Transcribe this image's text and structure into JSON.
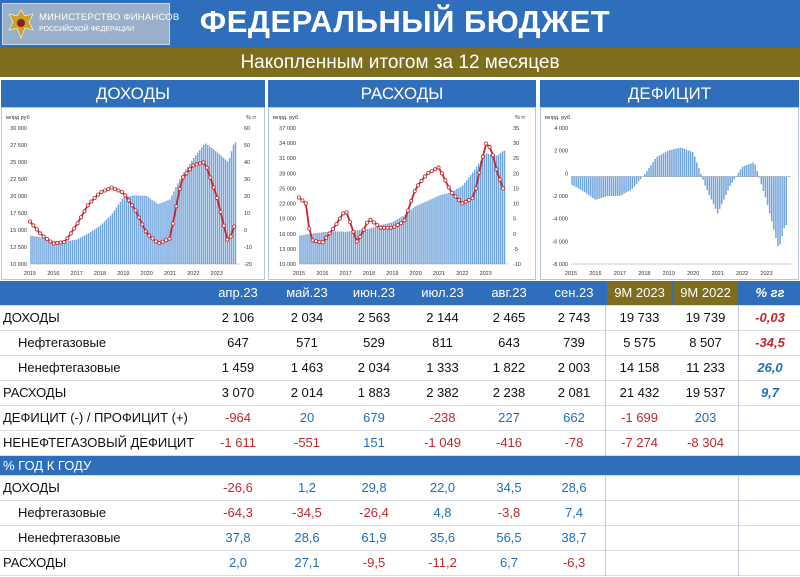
{
  "header": {
    "logo_line1": "МИНИСТЕРСТВО ФИНАНСОВ",
    "logo_line2": "РОССИЙСКОЙ ФЕДЕРАЦИИ",
    "title": "ФЕДЕРАЛЬНЫЙ БЮДЖЕТ",
    "subtitle": "Накопленным итогом за 12 месяцев"
  },
  "sections": {
    "income": "ДОХОДЫ",
    "expenses": "РАСХОДЫ",
    "deficit": "ДЕФИЦИТ"
  },
  "colors": {
    "blue": "#2f6eba",
    "gold": "#7f6d1e",
    "bar": "#6fa3dc",
    "line": "#c0282d",
    "negative": "#c0282d",
    "positive": "#1f6fb8"
  },
  "chart_data": [
    {
      "type": "bar",
      "title": "ДОХОДЫ",
      "ylabel": "млрд руб",
      "y2label": "% гг",
      "ylim": [
        10000,
        30000
      ],
      "y2lim": [
        -20,
        60
      ],
      "yticks": [
        "30 000",
        "27 500",
        "25 000",
        "22 500",
        "20 000",
        "17 500",
        "15 000",
        "12 500",
        "10 000"
      ],
      "y2ticks": [
        "60",
        "50",
        "40",
        "30",
        "20",
        "10",
        "0",
        "-10",
        "-20"
      ],
      "xticks": [
        "2015",
        "2016",
        "2017",
        "2018",
        "2019",
        "2020",
        "2021",
        "2022",
        "2023"
      ],
      "series": [
        {
          "kind": "bar",
          "x": [
            2015.0,
            2015.5,
            2016.0,
            2016.5,
            2017.0,
            2017.5,
            2018.0,
            2018.5,
            2019.0,
            2019.5,
            2020.0,
            2020.5,
            2021.0,
            2021.5,
            2022.0,
            2022.5,
            2023.0,
            2023.5,
            2023.75
          ],
          "values": [
            14200,
            13900,
            13400,
            13300,
            13600,
            14500,
            15600,
            17300,
            19800,
            20100,
            20000,
            18800,
            19500,
            23000,
            25500,
            27800,
            26500,
            25000,
            27900
          ]
        },
        {
          "kind": "line",
          "axis": "y2",
          "x": [
            2015.0,
            2015.5,
            2016.0,
            2016.5,
            2017.0,
            2017.5,
            2018.0,
            2018.5,
            2019.0,
            2019.5,
            2020.0,
            2020.5,
            2021.0,
            2021.5,
            2022.0,
            2022.5,
            2023.0,
            2023.5,
            2023.75
          ],
          "values": [
            5,
            -3,
            -8,
            -7,
            3,
            15,
            22,
            25,
            22,
            12,
            -2,
            -8,
            -5,
            30,
            38,
            40,
            20,
            -8,
            2
          ]
        }
      ]
    },
    {
      "type": "bar",
      "title": "РАСХОДЫ",
      "ylabel": "млрд. руб.",
      "y2label": "% гг",
      "ylim": [
        10000,
        37000
      ],
      "y2lim": [
        -10,
        35
      ],
      "yticks": [
        "37 000",
        "34 000",
        "31 000",
        "28 000",
        "25 000",
        "22 000",
        "19 000",
        "16 000",
        "13 000",
        "10 000"
      ],
      "y2ticks": [
        "35",
        "30",
        "25",
        "20",
        "15",
        "10",
        "5",
        "0",
        "-5",
        "-10"
      ],
      "xticks": [
        "2015",
        "2016",
        "2017",
        "2018",
        "2019",
        "2020",
        "2021",
        "2022",
        "2023"
      ],
      "series": [
        {
          "kind": "bar",
          "x": [
            2015.0,
            2015.5,
            2016.0,
            2016.5,
            2017.0,
            2017.5,
            2018.0,
            2018.5,
            2019.0,
            2019.5,
            2020.0,
            2020.5,
            2021.0,
            2021.5,
            2022.0,
            2022.5,
            2023.0,
            2023.5,
            2023.75
          ],
          "values": [
            15600,
            16000,
            16300,
            16500,
            16400,
            16700,
            17000,
            17700,
            18300,
            19600,
            21500,
            22500,
            23600,
            24200,
            25500,
            28500,
            32000,
            31500,
            32500
          ]
        },
        {
          "kind": "line",
          "axis": "y2",
          "x": [
            2015.0,
            2015.3,
            2015.5,
            2016.0,
            2016.5,
            2017.0,
            2017.5,
            2018.0,
            2018.5,
            2019.0,
            2019.5,
            2020.0,
            2020.5,
            2021.0,
            2021.5,
            2022.0,
            2022.5,
            2023.0,
            2023.25,
            2023.5,
            2023.75
          ],
          "values": [
            12,
            10,
            -2,
            -3,
            2,
            8,
            -3,
            5,
            2,
            2,
            4,
            15,
            20,
            22,
            14,
            10,
            12,
            30,
            28,
            20,
            15
          ]
        }
      ]
    },
    {
      "type": "bar",
      "title": "ДЕФИЦИТ",
      "ylabel": "млрд. руб.",
      "ylim": [
        -9000,
        5000
      ],
      "yticks": [
        "4 000",
        "2 000",
        "0",
        "-2 000",
        "-4 000",
        "-6 000",
        "-8 000"
      ],
      "xticks": [
        "2015",
        "2016",
        "2017",
        "2018",
        "2019",
        "2020",
        "2021",
        "2022",
        "2023"
      ],
      "series": [
        {
          "kind": "bar",
          "x": [
            2015.0,
            2015.5,
            2016.0,
            2016.5,
            2017.0,
            2017.5,
            2018.0,
            2018.5,
            2019.0,
            2019.5,
            2020.0,
            2020.5,
            2021.0,
            2021.5,
            2022.0,
            2022.5,
            2023.0,
            2023.5,
            2023.75
          ],
          "values": [
            -800,
            -1500,
            -2400,
            -2000,
            -2000,
            -1300,
            200,
            2000,
            2700,
            3000,
            2500,
            -1000,
            -3800,
            -1000,
            1000,
            1500,
            -2500,
            -7500,
            -5000
          ]
        }
      ]
    }
  ],
  "table": {
    "headers": [
      "апр.23",
      "май.23",
      "июн.23",
      "июл.23",
      "авг.23",
      "сен.23",
      "9М 2023",
      "9М 2022",
      "% гг"
    ],
    "rows": [
      {
        "label": "ДОХОДЫ",
        "indent": false,
        "values": [
          "2 106",
          "2 034",
          "2 563",
          "2 144",
          "2 465",
          "2 743",
          "19 733",
          "19 739",
          "-0,03"
        ],
        "tones": [
          "d",
          "d",
          "d",
          "d",
          "d",
          "d",
          "d",
          "d",
          "nb"
        ]
      },
      {
        "label": "Нефтегазовые",
        "indent": true,
        "values": [
          "647",
          "571",
          "529",
          "811",
          "643",
          "739",
          "5 575",
          "8 507",
          "-34,5"
        ],
        "tones": [
          "d",
          "d",
          "d",
          "d",
          "d",
          "d",
          "d",
          "d",
          "nb"
        ]
      },
      {
        "label": "Ненефтегазовые",
        "indent": true,
        "values": [
          "1 459",
          "1 463",
          "2 034",
          "1 333",
          "1 822",
          "2 003",
          "14 158",
          "11 233",
          "26,0"
        ],
        "tones": [
          "d",
          "d",
          "d",
          "d",
          "d",
          "d",
          "d",
          "d",
          "pb"
        ]
      },
      {
        "label": "РАСХОДЫ",
        "indent": false,
        "values": [
          "3 070",
          "2 014",
          "1 883",
          "2 382",
          "2 238",
          "2 081",
          "21 432",
          "19 537",
          "9,7"
        ],
        "tones": [
          "d",
          "d",
          "d",
          "d",
          "d",
          "d",
          "d",
          "d",
          "pb"
        ]
      },
      {
        "label": "ДЕФИЦИТ (-) / ПРОФИЦИТ (+)",
        "indent": false,
        "values": [
          "-964",
          "20",
          "679",
          "-238",
          "227",
          "662",
          "-1 699",
          "203",
          ""
        ],
        "tones": [
          "n",
          "p",
          "p",
          "n",
          "p",
          "p",
          "n",
          "p",
          "d"
        ]
      },
      {
        "label": "НЕНЕФТЕГАЗОВЫЙ ДЕФИЦИТ",
        "indent": false,
        "values": [
          "-1 611",
          "-551",
          "151",
          "-1 049",
          "-416",
          "-78",
          "-7 274",
          "-8 304",
          ""
        ],
        "tones": [
          "n",
          "n",
          "p",
          "n",
          "n",
          "n",
          "n",
          "n",
          "d"
        ]
      }
    ],
    "yoy_title": "% ГОД К ГОДУ",
    "yoy_rows": [
      {
        "label": "ДОХОДЫ",
        "indent": false,
        "values": [
          "-26,6",
          "1,2",
          "29,8",
          "22,0",
          "34,5",
          "28,6"
        ],
        "tones": [
          "n",
          "p",
          "p",
          "p",
          "p",
          "p"
        ]
      },
      {
        "label": "Нефтегазовые",
        "indent": true,
        "values": [
          "-64,3",
          "-34,5",
          "-26,4",
          "4,8",
          "-3,8",
          "7,4"
        ],
        "tones": [
          "n",
          "n",
          "n",
          "p",
          "n",
          "p"
        ]
      },
      {
        "label": "Ненефтегазовые",
        "indent": true,
        "values": [
          "37,8",
          "28,6",
          "61,9",
          "35,6",
          "56,5",
          "38,7"
        ],
        "tones": [
          "p",
          "p",
          "p",
          "p",
          "p",
          "p"
        ]
      },
      {
        "label": "РАСХОДЫ",
        "indent": false,
        "values": [
          "2,0",
          "27,1",
          "-9,5",
          "-11,2",
          "6,7",
          "-6,3"
        ],
        "tones": [
          "p",
          "p",
          "n",
          "n",
          "p",
          "n"
        ]
      }
    ]
  }
}
